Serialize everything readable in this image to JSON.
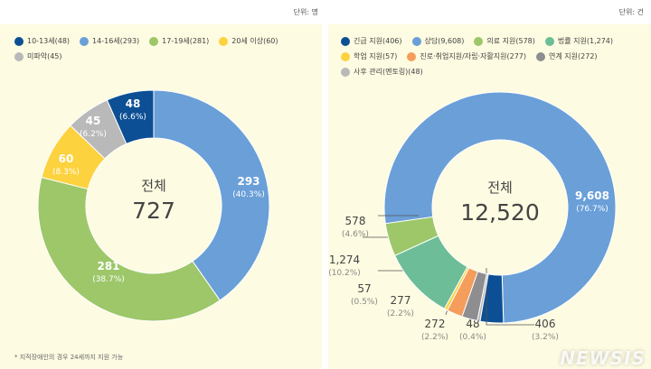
{
  "chart_data": [
    {
      "type": "pie",
      "donut": true,
      "unit": "단위: 명",
      "center_label": "전체",
      "center_value": "727",
      "categories": [
        "14-16세",
        "17-19세",
        "20세 이상",
        "미파악",
        "10-13세"
      ],
      "legend": [
        "10-13세(48)",
        "14-16세(293)",
        "17-19세(281)",
        "20세 이상(60)",
        "미파악(45)"
      ],
      "legend_colors": [
        "#0d4f94",
        "#6a9fd8",
        "#9dc769",
        "#fdd23f",
        "#b9b9b9"
      ],
      "values": [
        293,
        281,
        60,
        45,
        48
      ],
      "value_labels": [
        "293",
        "281",
        "60",
        "45",
        "48"
      ],
      "percent_labels": [
        "(40.3%)",
        "(38.7%)",
        "(8.3%)",
        "(6.2%)",
        "(6.6%)"
      ],
      "colors": [
        "#6a9fd8",
        "#9dc769",
        "#fdd23f",
        "#b9b9b9",
        "#0d4f94"
      ],
      "legend_placement": "top",
      "footnote": "* 지적장애인의 경우 24세까지 지원 가능"
    },
    {
      "type": "pie",
      "donut": true,
      "unit": "단위: 건",
      "center_label": "전체",
      "center_value": "12,520",
      "categories": [
        "상담",
        "긴급 지원",
        "사후 관리(멘토링)",
        "연계 지원",
        "진로·취업지원/자립·자활지원",
        "학업 지원",
        "법률 지원",
        "의료 지원"
      ],
      "legend": [
        "긴급 지원(406)",
        "상담(9,608)",
        "의료 지원(578)",
        "법률 지원(1,274)",
        "학업 지원(57)",
        "진로·취업지원/자립·자활지원(277)",
        "연계 지원(272)",
        "사후 관리(멘토링)(48)"
      ],
      "legend_colors": [
        "#0d4f94",
        "#6a9fd8",
        "#9dc769",
        "#6dbd98",
        "#fdd23f",
        "#f59d5b",
        "#8e8e91",
        "#b9b9b9"
      ],
      "values": [
        9608,
        406,
        48,
        272,
        277,
        57,
        1274,
        578
      ],
      "value_labels": [
        "9,608",
        "406",
        "48",
        "272",
        "277",
        "57",
        "1,274",
        "578"
      ],
      "percent_labels": [
        "(76.7%)",
        "(3.2%)",
        "(0.4%)",
        "(2.2%)",
        "(2.2%)",
        "(0.5%)",
        "(10.2%)",
        "(4.6%)"
      ],
      "colors": [
        "#6a9fd8",
        "#0d4f94",
        "#b9b9b9",
        "#8e8e91",
        "#f59d5b",
        "#fdd23f",
        "#6dbd98",
        "#9dc769"
      ],
      "legend_placement": "top"
    }
  ],
  "watermark": "NEWSIS"
}
